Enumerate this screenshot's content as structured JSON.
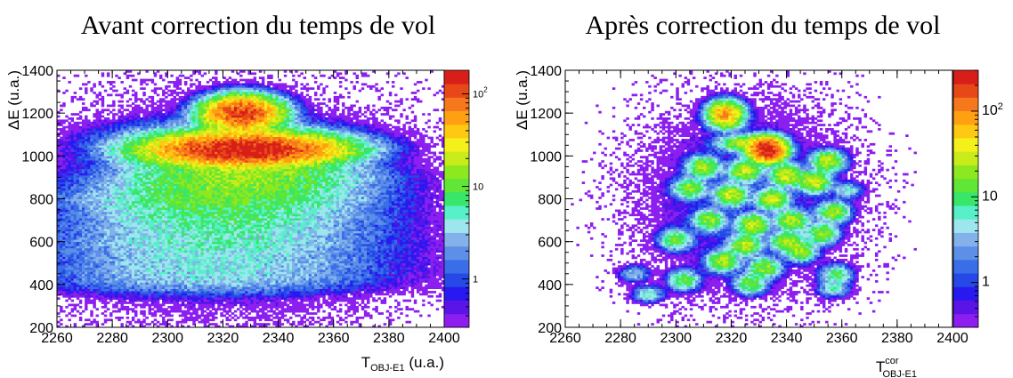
{
  "chart_data": [
    {
      "type": "heatmap",
      "title": "Avant correction du temps de vol",
      "xlabel": {
        "main": "T",
        "sub": "OBJ-E1",
        "suffix": " (u.a.)"
      },
      "ylabel": "ΔE (u.a.)",
      "xlim": [
        2260,
        2400
      ],
      "ylim": [
        200,
        1400
      ],
      "x_ticks": [
        "2260",
        "2280",
        "2300",
        "2320",
        "2340",
        "2360",
        "2380",
        "2400"
      ],
      "y_ticks": [
        "200",
        "400",
        "600",
        "800",
        "1000",
        "1200",
        "1400"
      ],
      "z_scale": "log",
      "z_range": [
        0.3,
        180
      ],
      "z_ticks": [
        {
          "value": 1,
          "base": "1",
          "exp": ""
        },
        {
          "value": 10,
          "base": "10",
          "exp": ""
        },
        {
          "value": 100,
          "base": "10",
          "exp": "2"
        }
      ],
      "grid": false,
      "clusters": [
        {
          "x": 2327,
          "y": 1200,
          "sx": 7,
          "sy": 40,
          "peak": 130
        },
        {
          "x": 2328,
          "y": 1030,
          "sx": 17,
          "sy": 38,
          "peak": 180
        },
        {
          "x": 2322,
          "y": 1060,
          "sx": 22,
          "sy": 55,
          "peak": 8
        },
        {
          "x": 2327,
          "y": 900,
          "sx": 24,
          "sy": 45,
          "peak": 14
        },
        {
          "x": 2320,
          "y": 800,
          "sx": 28,
          "sy": 45,
          "peak": 9
        },
        {
          "x": 2320,
          "y": 700,
          "sx": 30,
          "sy": 45,
          "peak": 5
        },
        {
          "x": 2318,
          "y": 600,
          "sx": 33,
          "sy": 45,
          "peak": 4
        },
        {
          "x": 2318,
          "y": 500,
          "sx": 35,
          "sy": 45,
          "peak": 3
        },
        {
          "x": 2315,
          "y": 420,
          "sx": 35,
          "sy": 40,
          "peak": 2.5
        },
        {
          "x": 2320,
          "y": 750,
          "sx": 40,
          "sy": 300,
          "peak": 0.9
        }
      ]
    },
    {
      "type": "heatmap",
      "title": "Après correction du temps de vol",
      "xlabel": {
        "main": "T",
        "sup": "cor",
        "sub": "OBJ-E1",
        "suffix": ""
      },
      "ylabel": "ΔE (u.a.)",
      "xlim": [
        2260,
        2400
      ],
      "ylim": [
        200,
        1400
      ],
      "x_ticks": [
        "2260",
        "2280",
        "2300",
        "2320",
        "2340",
        "2360",
        "2380",
        "2400"
      ],
      "y_ticks": [
        "200",
        "400",
        "600",
        "800",
        "1000",
        "1200",
        "1400"
      ],
      "z_scale": "log",
      "z_range": [
        0.3,
        300
      ],
      "z_ticks": [
        {
          "value": 1,
          "base": "1",
          "exp": ""
        },
        {
          "value": 10,
          "base": "10",
          "exp": ""
        },
        {
          "value": 100,
          "base": "10",
          "exp": "2"
        }
      ],
      "grid": false,
      "clusters": [
        {
          "x": 2318,
          "y": 1195,
          "sx": 3.2,
          "sy": 30,
          "peak": 90
        },
        {
          "x": 2333,
          "y": 1030,
          "sx": 3.2,
          "sy": 28,
          "peak": 300
        },
        {
          "x": 2325,
          "y": 1060,
          "sx": 5,
          "sy": 20,
          "peak": 25
        },
        {
          "x": 2310,
          "y": 950,
          "sx": 3,
          "sy": 25,
          "peak": 25
        },
        {
          "x": 2325,
          "y": 930,
          "sx": 3,
          "sy": 25,
          "peak": 30
        },
        {
          "x": 2340,
          "y": 910,
          "sx": 3,
          "sy": 25,
          "peak": 35
        },
        {
          "x": 2355,
          "y": 975,
          "sx": 3,
          "sy": 25,
          "peak": 30
        },
        {
          "x": 2305,
          "y": 850,
          "sx": 3,
          "sy": 25,
          "peak": 20
        },
        {
          "x": 2320,
          "y": 820,
          "sx": 3,
          "sy": 25,
          "peak": 30
        },
        {
          "x": 2335,
          "y": 800,
          "sx": 3,
          "sy": 25,
          "peak": 30
        },
        {
          "x": 2350,
          "y": 880,
          "sx": 3,
          "sy": 25,
          "peak": 35
        },
        {
          "x": 2312,
          "y": 700,
          "sx": 3,
          "sy": 25,
          "peak": 20
        },
        {
          "x": 2328,
          "y": 680,
          "sx": 3,
          "sy": 25,
          "peak": 30
        },
        {
          "x": 2342,
          "y": 700,
          "sx": 3,
          "sy": 25,
          "peak": 25
        },
        {
          "x": 2357,
          "y": 740,
          "sx": 3,
          "sy": 25,
          "peak": 20
        },
        {
          "x": 2300,
          "y": 610,
          "sx": 3,
          "sy": 25,
          "peak": 15
        },
        {
          "x": 2325,
          "y": 585,
          "sx": 3,
          "sy": 25,
          "peak": 25
        },
        {
          "x": 2340,
          "y": 600,
          "sx": 3,
          "sy": 25,
          "peak": 20
        },
        {
          "x": 2353,
          "y": 640,
          "sx": 3,
          "sy": 25,
          "peak": 20
        },
        {
          "x": 2317,
          "y": 510,
          "sx": 3,
          "sy": 25,
          "peak": 25
        },
        {
          "x": 2332,
          "y": 480,
          "sx": 3,
          "sy": 25,
          "peak": 20
        },
        {
          "x": 2345,
          "y": 560,
          "sx": 3,
          "sy": 25,
          "peak": 22
        },
        {
          "x": 2303,
          "y": 420,
          "sx": 3,
          "sy": 25,
          "peak": 12
        },
        {
          "x": 2327,
          "y": 405,
          "sx": 3,
          "sy": 25,
          "peak": 15
        },
        {
          "x": 2358,
          "y": 445,
          "sx": 3,
          "sy": 25,
          "peak": 10
        },
        {
          "x": 2290,
          "y": 355,
          "sx": 3,
          "sy": 20,
          "peak": 6
        },
        {
          "x": 2357,
          "y": 380,
          "sx": 3,
          "sy": 20,
          "peak": 6
        },
        {
          "x": 2285,
          "y": 450,
          "sx": 3,
          "sy": 20,
          "peak": 4
        },
        {
          "x": 2362,
          "y": 840,
          "sx": 3,
          "sy": 20,
          "peak": 5
        },
        {
          "x": 2325,
          "y": 800,
          "sx": 22,
          "sy": 260,
          "peak": 0.9
        }
      ]
    }
  ]
}
